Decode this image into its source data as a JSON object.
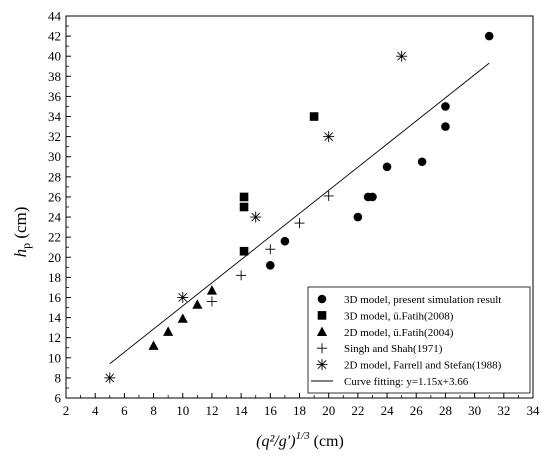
{
  "chart_data": {
    "type": "scatter",
    "xlabel": {
      "main": "(q²/g′)",
      "exp": "1/3",
      "unit": " (cm)"
    },
    "ylabel": {
      "main": "h",
      "sub": "p",
      "unit": " (cm)"
    },
    "xlim": [
      2,
      34
    ],
    "ylim": [
      6,
      44
    ],
    "xticks": [
      2,
      4,
      6,
      8,
      10,
      12,
      14,
      16,
      18,
      20,
      22,
      24,
      26,
      28,
      30,
      32,
      34
    ],
    "yticks": [
      6,
      8,
      10,
      12,
      14,
      16,
      18,
      20,
      22,
      24,
      26,
      28,
      30,
      32,
      34,
      36,
      38,
      40,
      42,
      44
    ],
    "grid": false,
    "legend_position": "bottom-right",
    "series": [
      {
        "name": "3D model, present simulation result",
        "marker": "circle",
        "points": [
          [
            16,
            19.2
          ],
          [
            17,
            21.6
          ],
          [
            22,
            24
          ],
          [
            22.7,
            26
          ],
          [
            23,
            26
          ],
          [
            24,
            29
          ],
          [
            26.4,
            29.5
          ],
          [
            28,
            33
          ],
          [
            28,
            35
          ],
          [
            31,
            42
          ]
        ]
      },
      {
        "name": "3D model, ü.Fatih(2008)",
        "marker": "square",
        "points": [
          [
            14.2,
            20.6
          ],
          [
            14.2,
            25
          ],
          [
            14.2,
            26
          ],
          [
            19,
            34
          ]
        ]
      },
      {
        "name": "2D model, ü.Fatih(2004)",
        "marker": "triangle",
        "points": [
          [
            8,
            11.2
          ],
          [
            9,
            12.6
          ],
          [
            10,
            13.9
          ],
          [
            11,
            15.3
          ],
          [
            12,
            16.7
          ]
        ]
      },
      {
        "name": "Singh and Shah(1971)",
        "marker": "plus",
        "points": [
          [
            12,
            15.6
          ],
          [
            14,
            18.2
          ],
          [
            16,
            20.8
          ],
          [
            18,
            23.4
          ],
          [
            20,
            26.1
          ]
        ]
      },
      {
        "name": "2D model, Farrell and Stefan(1988)",
        "marker": "asterisk",
        "points": [
          [
            5,
            8
          ],
          [
            10,
            16
          ],
          [
            15,
            24
          ],
          [
            20,
            32
          ],
          [
            25,
            40
          ]
        ]
      },
      {
        "name": "Curve fitting: y=1.15x+3.66",
        "marker": "line",
        "line": {
          "slope": 1.15,
          "intercept": 3.66,
          "x_range": [
            5,
            31
          ]
        }
      }
    ]
  }
}
